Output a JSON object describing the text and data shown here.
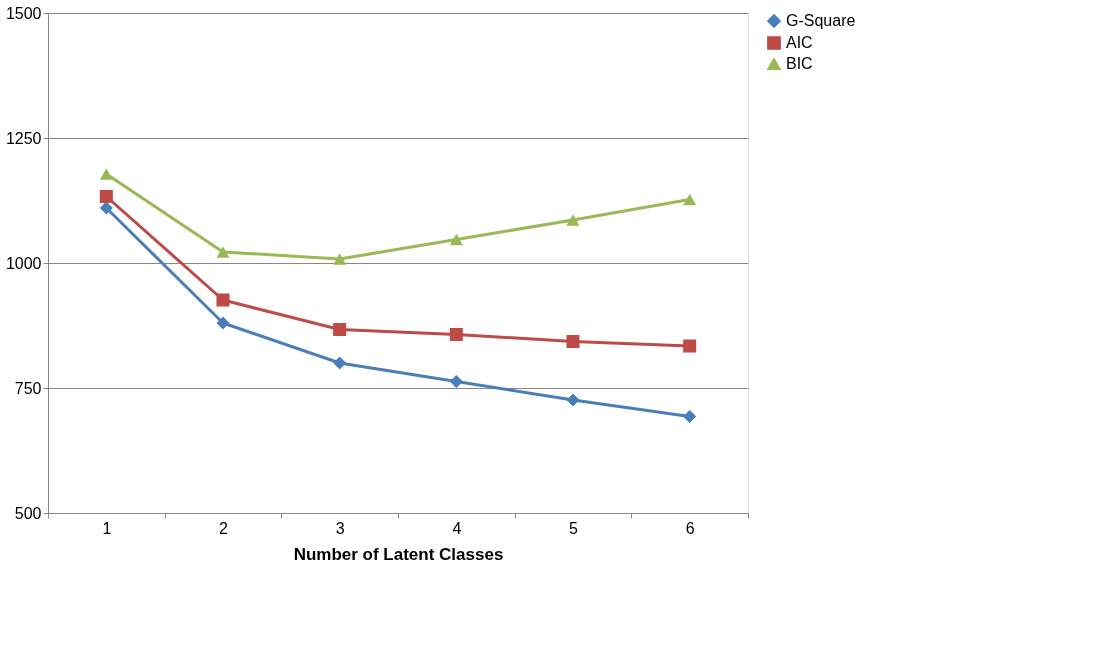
{
  "chart_data": {
    "type": "line",
    "xlabel": "Number of Latent Classes",
    "categories": [
      "1",
      "2",
      "3",
      "4",
      "5",
      "6"
    ],
    "series": [
      {
        "name": "G-Square",
        "color": "#4a7ebb",
        "marker": "diamond",
        "values": [
          1110,
          880,
          800,
          763,
          726,
          693
        ]
      },
      {
        "name": "AIC",
        "color": "#be4b48",
        "marker": "square",
        "values": [
          1133,
          926,
          867,
          857,
          843,
          834
        ]
      },
      {
        "name": "BIC",
        "color": "#98b954",
        "marker": "triangle",
        "values": [
          1178,
          1022,
          1008,
          1047,
          1086,
          1127
        ]
      }
    ],
    "ylim": [
      500,
      1500
    ],
    "yticks": [
      500,
      750,
      1000,
      1250,
      1500
    ],
    "grid": "y",
    "legend": "right"
  }
}
